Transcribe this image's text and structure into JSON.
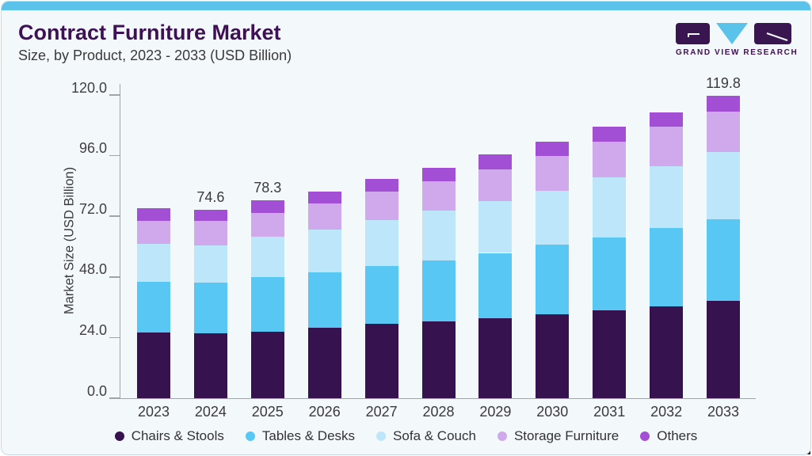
{
  "header": {
    "title": "Contract Furniture Market",
    "subtitle": "Size, by Product, 2023 - 2033 (USD Billion)"
  },
  "logo": {
    "brand": "GRAND VIEW RESEARCH"
  },
  "colors": {
    "accent_bar": "#5BC3EA",
    "card_background": "#F3F8FB",
    "card_border": "#CBD9E3",
    "title_text": "#3E1054",
    "body_text": "#3A3A3A",
    "axis_line": "#9EA4AB",
    "logo_dark": "#3A1650",
    "logo_triangle": "#5BC3EA"
  },
  "chart_data": {
    "type": "bar",
    "stacked": true,
    "title": "Contract Furniture Market Size, by Product, 2023 - 2033 (USD Billion)",
    "xlabel": "",
    "ylabel": "Market Size (USD Billion)",
    "ylim": [
      0,
      120
    ],
    "yticks": [
      0,
      24,
      48,
      72,
      96,
      120
    ],
    "ytick_labels": [
      "0.0",
      "24.0",
      "48.0",
      "72.0",
      "96.0",
      "120.0"
    ],
    "grid": false,
    "legend_position": "bottom",
    "categories": [
      "2023",
      "2024",
      "2025",
      "2026",
      "2027",
      "2028",
      "2029",
      "2030",
      "2031",
      "2032",
      "2033"
    ],
    "series": [
      {
        "name": "Chairs & Stools",
        "color": "#36124E",
        "values": [
          26.0,
          25.6,
          26.4,
          27.9,
          29.3,
          30.3,
          31.6,
          33.2,
          34.7,
          36.5,
          38.4
        ]
      },
      {
        "name": "Tables & Desks",
        "color": "#58C7F3",
        "values": [
          20.0,
          20.2,
          21.4,
          21.8,
          23.0,
          24.3,
          25.9,
          27.5,
          28.9,
          30.9,
          32.4
        ]
      },
      {
        "name": "Sofa & Couch",
        "color": "#BEE6FA",
        "values": [
          15.1,
          14.6,
          16.2,
          17.0,
          18.1,
          19.7,
          20.6,
          21.4,
          23.7,
          24.4,
          26.7
        ]
      },
      {
        "name": "Storage Furniture",
        "color": "#D0A9EC",
        "values": [
          9.1,
          9.7,
          9.4,
          10.4,
          11.5,
          11.6,
          12.4,
          13.8,
          14.2,
          15.6,
          16.0
        ]
      },
      {
        "name": "Others",
        "color": "#A24FD6",
        "values": [
          5.1,
          4.5,
          4.9,
          4.8,
          5.0,
          5.3,
          6.0,
          5.6,
          5.9,
          5.8,
          6.3
        ]
      }
    ],
    "totals": [
      75.3,
      74.6,
      78.3,
      81.9,
      86.9,
      91.2,
      96.5,
      101.5,
      107.4,
      113.2,
      119.8
    ],
    "value_labels": [
      null,
      "74.6",
      "78.3",
      null,
      null,
      null,
      null,
      null,
      null,
      null,
      "119.8"
    ]
  }
}
